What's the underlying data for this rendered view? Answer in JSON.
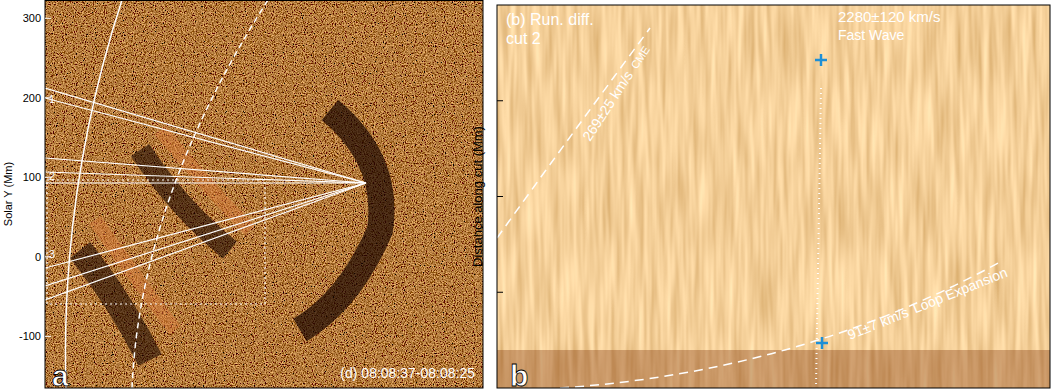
{
  "chart_data": [
    {
      "type": "image",
      "panel_label": "a",
      "y_label": "Solar Y (Mm)",
      "ylim": [
        -165,
        323
      ],
      "yticks": [
        -100,
        0,
        100,
        200,
        300
      ],
      "cut_labels": [
        "1",
        "2",
        "3"
      ],
      "caption": "(d) 08:08:37-08:08:25"
    },
    {
      "type": "time_distance",
      "panel_label": "b",
      "title": "(b) Run. diff.",
      "subtitle": "cut 2",
      "y_label": "Distance along cut (Mm)",
      "ylim": [
        0,
        400
      ],
      "yticks": [
        100,
        200,
        300
      ],
      "tick_labels": false,
      "annotations": [
        {
          "speed": "269±25 km/s",
          "name": "CME"
        },
        {
          "speed": "2280±120 km/s",
          "name": "Fast Wave"
        },
        {
          "speed": "91±7 km/s",
          "name": "Loop Expansion"
        }
      ]
    }
  ]
}
